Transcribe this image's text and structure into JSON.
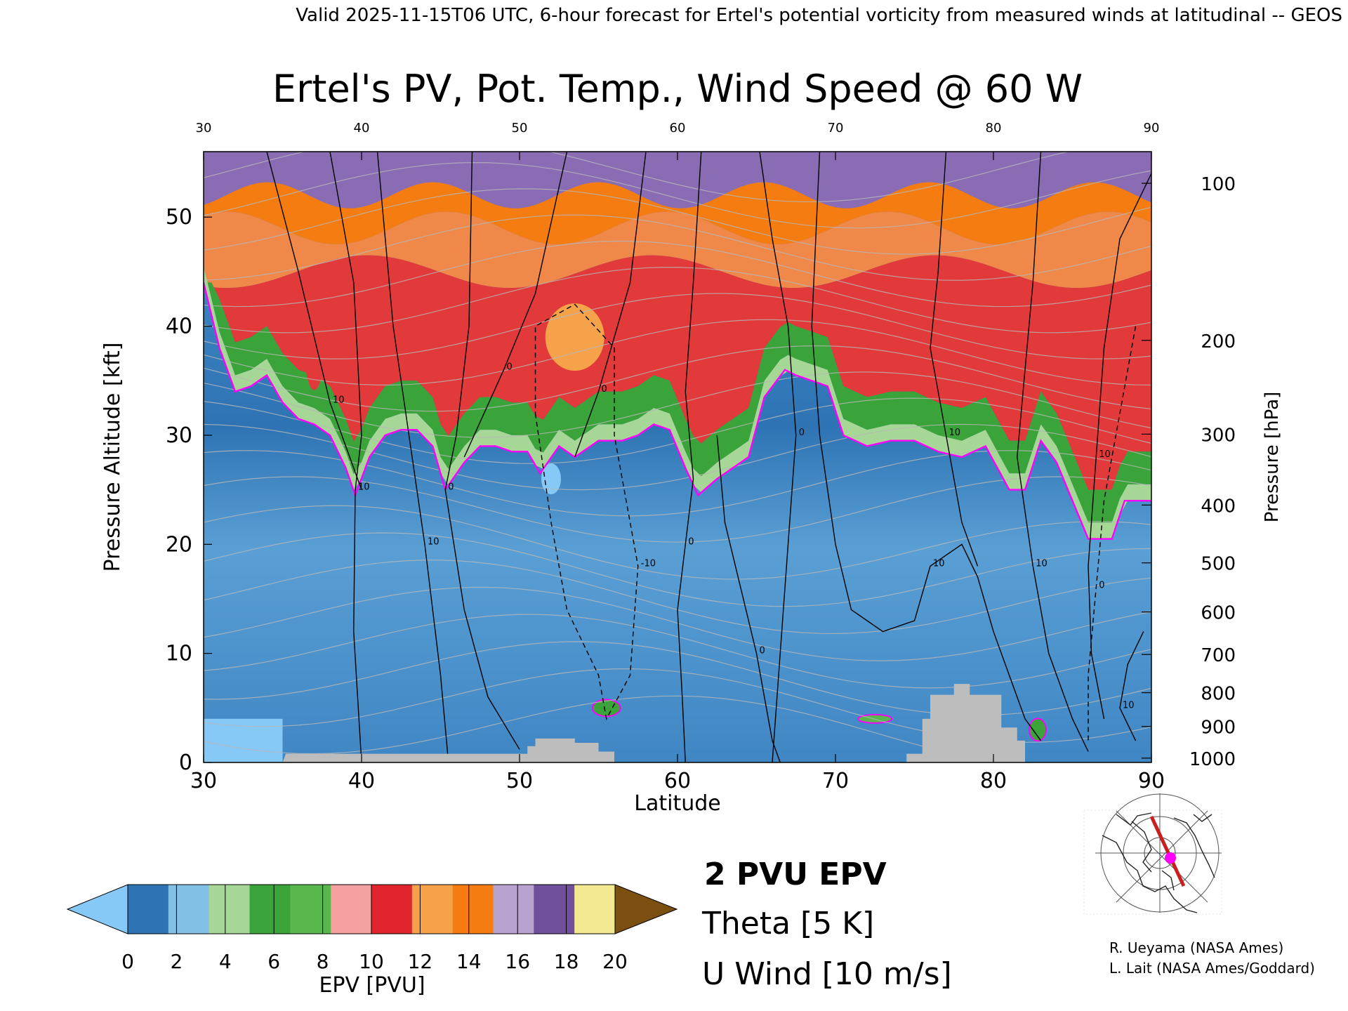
{
  "header": {
    "valid_line": "Valid 2025-11-15T06 UTC, 6-hour forecast for Ertel's potential vorticity from measured winds at latitudinal -- GEOS"
  },
  "credits": {
    "line1": "R. Ueyama (NASA Ames)",
    "line2": "L. Lait (NASA Ames/Goddard)"
  },
  "legend": {
    "epv_contour": "2 PVU EPV",
    "theta": "Theta [5 K]",
    "uwind": "U Wind [10 m/s]",
    "colors": {
      "epv_contour": "#ff00ff",
      "theta": "#aaaaaa",
      "uwind": "#000000"
    }
  },
  "colorbar": {
    "label": "EPV [PVU]",
    "ticks": [
      "0",
      "2",
      "4",
      "6",
      "8",
      "10",
      "12",
      "14",
      "16",
      "18",
      "20"
    ],
    "under_color": "#86c8f6",
    "over_color": "#7a4f10",
    "colors": [
      "#2e74b4",
      "#82c0e6",
      "#a6d796",
      "#3aa33a",
      "#58b84e",
      "#f5a0a0",
      "#e0262c",
      "#f5a24a",
      "#f57c10",
      "#b8a2d0",
      "#70509c",
      "#f2e890"
    ]
  },
  "map_inset": {
    "name": "cross-section locator map",
    "track_color": "#c82020",
    "point_color": "#ff00ff"
  },
  "chart_data": {
    "type": "heatmap",
    "title": "Ertel's PV, Pot. Temp., Wind Speed @ 60 W",
    "xlabel": "Latitude",
    "ylabel_left": "Pressure Altitude [kft]",
    "ylabel_right": "Pressure [hPa]",
    "xlim": [
      30,
      90
    ],
    "ylim": [
      0,
      56
    ],
    "x_ticks": [
      "30",
      "40",
      "50",
      "60",
      "70",
      "80",
      "90"
    ],
    "x_ticks_top": [
      "30",
      "40",
      "50",
      "60",
      "70",
      "80",
      "90"
    ],
    "y_ticks": [
      "0",
      "10",
      "20",
      "30",
      "40",
      "50"
    ],
    "pressure_ticks": [
      {
        "p": "1000",
        "kft": 0.4
      },
      {
        "p": "900",
        "kft": 3.3
      },
      {
        "p": "800",
        "kft": 6.4
      },
      {
        "p": "700",
        "kft": 9.9
      },
      {
        "p": "600",
        "kft": 13.8
      },
      {
        "p": "500",
        "kft": 18.3
      },
      {
        "p": "400",
        "kft": 23.6
      },
      {
        "p": "300",
        "kft": 30.1
      },
      {
        "p": "200",
        "kft": 38.7
      },
      {
        "p": "100",
        "kft": 53.1
      }
    ],
    "tropopause_2pvu": [
      [
        30,
        44
      ],
      [
        31,
        38
      ],
      [
        32,
        34
      ],
      [
        33,
        34.5
      ],
      [
        34,
        35.5
      ],
      [
        35,
        33
      ],
      [
        36,
        31.5
      ],
      [
        37,
        31
      ],
      [
        38,
        30
      ],
      [
        39,
        27
      ],
      [
        39.6,
        24.5
      ],
      [
        40.5,
        28
      ],
      [
        41.5,
        30
      ],
      [
        42.5,
        30.5
      ],
      [
        43.5,
        30.5
      ],
      [
        44.5,
        29
      ],
      [
        45.3,
        25
      ],
      [
        46.5,
        27.5
      ],
      [
        47.5,
        29
      ],
      [
        48.5,
        29
      ],
      [
        49.5,
        28.5
      ],
      [
        50.5,
        28.5
      ],
      [
        51.3,
        26.5
      ],
      [
        52.5,
        29
      ],
      [
        53.5,
        28
      ],
      [
        55,
        29.5
      ],
      [
        56.5,
        29.5
      ],
      [
        57.5,
        30
      ],
      [
        58.5,
        31
      ],
      [
        59.5,
        30.5
      ],
      [
        60.5,
        27
      ],
      [
        61.3,
        24.5
      ],
      [
        62.5,
        26
      ],
      [
        63.5,
        27
      ],
      [
        64.5,
        28
      ],
      [
        65.5,
        33.5
      ],
      [
        66.8,
        36
      ],
      [
        67.5,
        35.5
      ],
      [
        68.5,
        35
      ],
      [
        69.5,
        34.5
      ],
      [
        70.5,
        30
      ],
      [
        72,
        29
      ],
      [
        73.5,
        29.5
      ],
      [
        75,
        29.5
      ],
      [
        76.5,
        28.5
      ],
      [
        78,
        28
      ],
      [
        79.5,
        29
      ],
      [
        81,
        25
      ],
      [
        82,
        25
      ],
      [
        83,
        29.5
      ],
      [
        84,
        27.5
      ],
      [
        85,
        24
      ],
      [
        86,
        20.5
      ],
      [
        87.5,
        20.5
      ],
      [
        88.3,
        24
      ],
      [
        90,
        24
      ]
    ],
    "epv_bands_kft": [
      {
        "from": 0,
        "to": "tropopause",
        "epv_pvu": "1-2"
      },
      {
        "from": "tropopause",
        "to": "+4 kft",
        "epv_pvu": "3-6"
      },
      {
        "from": "+4 kft",
        "to": 46,
        "epv_pvu": "8-10"
      },
      {
        "from": 46,
        "to": 52,
        "epv_pvu": "11-13"
      },
      {
        "from": 52,
        "to": 56,
        "epv_pvu": "14-20"
      }
    ],
    "terrain_kft": [
      [
        30,
        0
      ],
      [
        35,
        0
      ],
      [
        35.2,
        0.8
      ],
      [
        50.5,
        0.8
      ],
      [
        50.5,
        1.5
      ],
      [
        51,
        1.5
      ],
      [
        51,
        2.2
      ],
      [
        53.5,
        2.2
      ],
      [
        53.5,
        1.8
      ],
      [
        55,
        1.8
      ],
      [
        55,
        1.0
      ],
      [
        56,
        1.0
      ],
      [
        56,
        0
      ],
      [
        74.5,
        0
      ],
      [
        74.5,
        0.8
      ],
      [
        75.5,
        0.8
      ],
      [
        75.5,
        4
      ],
      [
        76,
        4
      ],
      [
        76,
        6.2
      ],
      [
        77.5,
        6.2
      ],
      [
        77.5,
        7.2
      ],
      [
        78.5,
        7.2
      ],
      [
        78.5,
        6.2
      ],
      [
        80.5,
        6.2
      ],
      [
        80.5,
        3.2
      ],
      [
        81.5,
        3.2
      ],
      [
        81.5,
        2
      ],
      [
        82,
        2
      ],
      [
        82,
        0
      ],
      [
        90,
        0
      ]
    ],
    "u_wind_contours": [
      {
        "label": "10",
        "points": [
          [
            38,
            56
          ],
          [
            39.5,
            44
          ],
          [
            40,
            30
          ],
          [
            39.6,
            25
          ],
          [
            39.5,
            12
          ],
          [
            40,
            0
          ]
        ]
      },
      {
        "label": "10",
        "points": [
          [
            34,
            56
          ],
          [
            36,
            45
          ],
          [
            38,
            33
          ],
          [
            40,
            25
          ]
        ]
      },
      {
        "label": "10",
        "points": [
          [
            41,
            56
          ],
          [
            42,
            40
          ],
          [
            43,
            30
          ],
          [
            44,
            20
          ],
          [
            45,
            8
          ],
          [
            45.5,
            0
          ]
        ]
      },
      {
        "label": "0",
        "points": [
          [
            47,
            56
          ],
          [
            46.8,
            40
          ],
          [
            46,
            30
          ],
          [
            45.3,
            25
          ],
          [
            46.5,
            14
          ],
          [
            48,
            6
          ],
          [
            50,
            1.2
          ]
        ]
      },
      {
        "label": "0",
        "points": [
          [
            53,
            56
          ],
          [
            51,
            43
          ],
          [
            49,
            36
          ],
          [
            46.5,
            28
          ]
        ]
      },
      {
        "label": "0",
        "points": [
          [
            58,
            56
          ],
          [
            57,
            44
          ],
          [
            55,
            34
          ],
          [
            53.5,
            28
          ]
        ]
      },
      {
        "label": "-10",
        "points": [
          [
            51,
            32
          ],
          [
            52,
            22
          ],
          [
            53,
            14
          ],
          [
            55,
            8
          ],
          [
            55.5,
            4
          ],
          [
            57,
            8
          ],
          [
            57.5,
            18
          ],
          [
            56,
            30
          ],
          [
            56,
            38
          ],
          [
            53.5,
            42
          ],
          [
            51,
            40
          ],
          [
            51,
            32
          ]
        ],
        "dashed": true
      },
      {
        "label": "0",
        "points": [
          [
            61.5,
            56
          ],
          [
            61,
            44
          ],
          [
            60.5,
            34
          ],
          [
            61,
            26
          ],
          [
            60.5,
            20
          ],
          [
            60,
            14
          ],
          [
            60.3,
            6
          ],
          [
            60.5,
            0
          ]
        ]
      },
      {
        "label": "0",
        "points": [
          [
            62.5,
            30
          ],
          [
            63,
            22
          ],
          [
            64,
            16
          ],
          [
            65,
            10
          ],
          [
            66,
            2
          ],
          [
            66.5,
            0
          ]
        ]
      },
      {
        "label": "0",
        "points": [
          [
            65.2,
            56
          ],
          [
            66,
            48
          ],
          [
            67,
            40
          ],
          [
            67.5,
            30
          ],
          [
            67,
            20
          ],
          [
            66.5,
            10
          ],
          [
            66,
            0
          ]
        ]
      },
      {
        "label": "10",
        "points": [
          [
            69,
            56
          ],
          [
            68.5,
            40
          ],
          [
            69,
            30
          ],
          [
            70,
            20
          ],
          [
            71,
            14
          ],
          [
            73,
            12
          ],
          [
            75,
            13
          ],
          [
            76,
            18
          ],
          [
            78,
            20
          ],
          [
            79,
            17
          ],
          [
            80,
            12
          ],
          [
            81,
            8
          ],
          [
            82,
            4
          ],
          [
            83,
            2
          ]
        ]
      },
      {
        "label": "10",
        "points": [
          [
            77,
            56
          ],
          [
            76.5,
            45
          ],
          [
            76,
            38
          ],
          [
            77,
            30
          ],
          [
            78,
            22
          ],
          [
            79,
            18
          ]
        ]
      },
      {
        "label": "10",
        "points": [
          [
            83,
            56
          ],
          [
            82.5,
            44
          ],
          [
            82,
            36
          ],
          [
            81.5,
            28
          ],
          [
            82.5,
            18
          ],
          [
            83.5,
            10
          ],
          [
            85,
            4
          ],
          [
            86,
            1
          ]
        ]
      },
      {
        "label": "10",
        "points": [
          [
            90,
            54
          ],
          [
            88,
            48
          ],
          [
            87,
            38
          ],
          [
            86.5,
            28
          ],
          [
            86,
            18
          ],
          [
            86.2,
            10
          ],
          [
            87,
            4
          ]
        ]
      },
      {
        "label": "0",
        "points": [
          [
            89,
            40
          ],
          [
            88,
            32
          ],
          [
            87,
            24
          ],
          [
            86.5,
            16
          ],
          [
            86,
            8
          ],
          [
            86,
            2
          ]
        ],
        "dashed": true
      },
      {
        "label": "10",
        "points": [
          [
            89.5,
            12
          ],
          [
            88.5,
            9
          ],
          [
            88,
            5
          ],
          [
            89,
            2
          ]
        ]
      }
    ]
  }
}
